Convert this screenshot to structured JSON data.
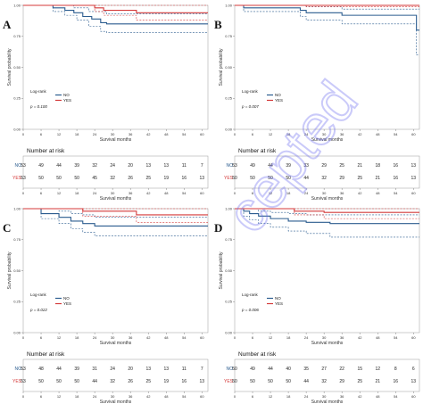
{
  "chart_data": [
    {
      "type": "line",
      "panel": "A",
      "xlabel": "Survival months",
      "ylabel": "Survival probability",
      "x_ticks": [
        0,
        6,
        12,
        18,
        24,
        30,
        36,
        42,
        48,
        54,
        60
      ],
      "y_ticks": [
        "0.00",
        "0.25",
        "0.50",
        "0.75",
        "1.00"
      ],
      "xlim": [
        0,
        62
      ],
      "ylim": [
        0,
        1
      ],
      "legend_title": "Log-rank",
      "legend_entries": [
        "NO",
        "YES"
      ],
      "p_value": "p = 0.100",
      "series": [
        {
          "name": "NO",
          "color": "#2b5c8f",
          "steps": [
            [
              0,
              1
            ],
            [
              10,
              0.98
            ],
            [
              14,
              0.96
            ],
            [
              17,
              0.94
            ],
            [
              20,
              0.91
            ],
            [
              23,
              0.89
            ],
            [
              26,
              0.86
            ],
            [
              28,
              0.85
            ],
            [
              62,
              0.85
            ]
          ],
          "upper": [
            [
              0,
              1
            ],
            [
              10,
              1
            ],
            [
              17,
              0.98
            ],
            [
              22,
              0.95
            ],
            [
              28,
              0.93
            ],
            [
              62,
              0.93
            ]
          ],
          "lower": [
            [
              0,
              1
            ],
            [
              10,
              0.95
            ],
            [
              14,
              0.92
            ],
            [
              18,
              0.88
            ],
            [
              22,
              0.83
            ],
            [
              26,
              0.79
            ],
            [
              28,
              0.78
            ],
            [
              62,
              0.78
            ]
          ]
        },
        {
          "name": "YES",
          "color": "#d43a3a",
          "steps": [
            [
              0,
              1
            ],
            [
              24,
              0.98
            ],
            [
              27,
              0.96
            ],
            [
              38,
              0.94
            ],
            [
              62,
              0.94
            ]
          ],
          "upper": [
            [
              0,
              1
            ],
            [
              62,
              1
            ]
          ],
          "lower": [
            [
              0,
              1
            ],
            [
              24,
              0.95
            ],
            [
              27,
              0.92
            ],
            [
              38,
              0.88
            ],
            [
              62,
              0.88
            ]
          ]
        }
      ],
      "risk_table": {
        "title": "Number at risk",
        "rows": [
          {
            "label": "NO",
            "color": "#2b5c8f",
            "values": [
              "53",
              "49",
              "44",
              "39",
              "32",
              "24",
              "20",
              "13",
              "13",
              "11",
              "7"
            ]
          },
          {
            "label": "YES",
            "color": "#d43a3a",
            "values": [
              "53",
              "50",
              "50",
              "50",
              "45",
              "32",
              "26",
              "25",
              "19",
              "16",
              "13"
            ]
          }
        ],
        "xlabel": "Survival months"
      }
    },
    {
      "type": "line",
      "panel": "B",
      "xlabel": "Survival months",
      "ylabel": "Survival probability",
      "x_ticks": [
        0,
        6,
        12,
        18,
        24,
        30,
        36,
        42,
        48,
        54,
        60
      ],
      "y_ticks": [
        "0.00",
        "0.25",
        "0.50",
        "0.75",
        "1.00"
      ],
      "xlim": [
        0,
        62
      ],
      "ylim": [
        0,
        1
      ],
      "legend_title": "Log-rank",
      "legend_entries": [
        "NO",
        "YES"
      ],
      "p_value": "p = 0.007",
      "series": [
        {
          "name": "NO",
          "color": "#2b5c8f",
          "steps": [
            [
              0,
              1
            ],
            [
              3,
              0.98
            ],
            [
              22,
              0.96
            ],
            [
              24,
              0.94
            ],
            [
              36,
              0.92
            ],
            [
              60,
              0.92
            ],
            [
              61,
              0.8
            ],
            [
              62,
              0.8
            ]
          ],
          "upper": [
            [
              0,
              1
            ],
            [
              22,
              1
            ],
            [
              24,
              0.99
            ],
            [
              36,
              0.97
            ],
            [
              62,
              0.97
            ]
          ],
          "lower": [
            [
              0,
              1
            ],
            [
              3,
              0.95
            ],
            [
              22,
              0.91
            ],
            [
              24,
              0.88
            ],
            [
              36,
              0.85
            ],
            [
              60,
              0.85
            ],
            [
              61,
              0.6
            ],
            [
              62,
              0.6
            ]
          ]
        },
        {
          "name": "YES",
          "color": "#d43a3a",
          "steps": [
            [
              0,
              1
            ],
            [
              62,
              1
            ]
          ],
          "upper": [
            [
              0,
              1
            ],
            [
              62,
              1
            ]
          ],
          "lower": [
            [
              0,
              1
            ],
            [
              24,
              0.99
            ],
            [
              62,
              0.99
            ]
          ]
        }
      ],
      "risk_table": {
        "title": "Number at risk",
        "rows": [
          {
            "label": "NO",
            "color": "#2b5c8f",
            "values": [
              "53",
              "49",
              "44",
              "39",
              "33",
              "29",
              "25",
              "21",
              "18",
              "16",
              "13"
            ]
          },
          {
            "label": "YES",
            "color": "#d43a3a",
            "values": [
              "50",
              "50",
              "50",
              "50",
              "44",
              "32",
              "29",
              "25",
              "21",
              "16",
              "13"
            ]
          }
        ],
        "xlabel": "Survival months"
      }
    },
    {
      "type": "line",
      "panel": "C",
      "xlabel": "Survival months",
      "ylabel": "Survival probability",
      "x_ticks": [
        0,
        6,
        12,
        18,
        24,
        30,
        36,
        42,
        48,
        54,
        60
      ],
      "y_ticks": [
        "0.00",
        "0.25",
        "0.50",
        "0.75",
        "1.00"
      ],
      "xlim": [
        0,
        62
      ],
      "ylim": [
        0,
        1
      ],
      "legend_title": "Log-rank",
      "legend_entries": [
        "NO",
        "YES"
      ],
      "p_value": "p = 0.022",
      "series": [
        {
          "name": "NO",
          "color": "#2b5c8f",
          "steps": [
            [
              0,
              1
            ],
            [
              6,
              0.96
            ],
            [
              12,
              0.93
            ],
            [
              16,
              0.9
            ],
            [
              20,
              0.88
            ],
            [
              24,
              0.86
            ],
            [
              62,
              0.86
            ]
          ],
          "upper": [
            [
              0,
              1
            ],
            [
              6,
              1
            ],
            [
              12,
              0.98
            ],
            [
              16,
              0.96
            ],
            [
              20,
              0.95
            ],
            [
              24,
              0.93
            ],
            [
              62,
              0.93
            ]
          ],
          "lower": [
            [
              0,
              1
            ],
            [
              6,
              0.92
            ],
            [
              12,
              0.88
            ],
            [
              16,
              0.84
            ],
            [
              20,
              0.81
            ],
            [
              24,
              0.78
            ],
            [
              62,
              0.78
            ]
          ]
        },
        {
          "name": "YES",
          "color": "#d43a3a",
          "steps": [
            [
              0,
              1
            ],
            [
              20,
              0.98
            ],
            [
              38,
              0.95
            ],
            [
              62,
              0.95
            ]
          ],
          "upper": [
            [
              0,
              1
            ],
            [
              62,
              1
            ]
          ],
          "lower": [
            [
              0,
              1
            ],
            [
              20,
              0.94
            ],
            [
              38,
              0.89
            ],
            [
              62,
              0.89
            ]
          ]
        }
      ],
      "risk_table": {
        "title": "Number at risk",
        "rows": [
          {
            "label": "NO",
            "color": "#2b5c8f",
            "values": [
              "53",
              "48",
              "44",
              "39",
              "31",
              "24",
              "20",
              "13",
              "13",
              "11",
              "7"
            ]
          },
          {
            "label": "YES",
            "color": "#d43a3a",
            "values": [
              "53",
              "50",
              "50",
              "50",
              "44",
              "32",
              "26",
              "25",
              "19",
              "16",
              "13"
            ]
          }
        ],
        "xlabel": "Survival months"
      }
    },
    {
      "type": "line",
      "panel": "D",
      "xlabel": "Survival months",
      "ylabel": "Survival probability",
      "x_ticks": [
        0,
        6,
        12,
        18,
        24,
        30,
        36,
        42,
        48,
        54,
        60
      ],
      "y_ticks": [
        "0.00",
        "0.25",
        "0.50",
        "0.75",
        "1.00"
      ],
      "xlim": [
        0,
        62
      ],
      "ylim": [
        0,
        1
      ],
      "legend_title": "Log-rank",
      "legend_entries": [
        "NO",
        "YES"
      ],
      "p_value": "p = 0.006",
      "series": [
        {
          "name": "NO",
          "color": "#2b5c8f",
          "steps": [
            [
              0,
              1
            ],
            [
              3,
              0.98
            ],
            [
              5,
              0.96
            ],
            [
              8,
              0.94
            ],
            [
              12,
              0.92
            ],
            [
              18,
              0.9
            ],
            [
              24,
              0.89
            ],
            [
              32,
              0.88
            ],
            [
              62,
              0.88
            ]
          ],
          "upper": [
            [
              0,
              1
            ],
            [
              5,
              1
            ],
            [
              8,
              0.98
            ],
            [
              12,
              0.97
            ],
            [
              18,
              0.96
            ],
            [
              24,
              0.95
            ],
            [
              62,
              0.95
            ]
          ],
          "lower": [
            [
              0,
              1
            ],
            [
              3,
              0.94
            ],
            [
              5,
              0.91
            ],
            [
              8,
              0.88
            ],
            [
              12,
              0.85
            ],
            [
              18,
              0.82
            ],
            [
              24,
              0.8
            ],
            [
              32,
              0.77
            ],
            [
              62,
              0.77
            ]
          ]
        },
        {
          "name": "YES",
          "color": "#d43a3a",
          "steps": [
            [
              0,
              1
            ],
            [
              20,
              0.98
            ],
            [
              30,
              0.97
            ],
            [
              62,
              0.97
            ]
          ],
          "upper": [
            [
              0,
              1
            ],
            [
              62,
              1
            ]
          ],
          "lower": [
            [
              0,
              1
            ],
            [
              20,
              0.95
            ],
            [
              30,
              0.92
            ],
            [
              62,
              0.92
            ]
          ]
        }
      ],
      "risk_table": {
        "title": "Number at risk",
        "rows": [
          {
            "label": "NO",
            "color": "#2b5c8f",
            "values": [
              "50",
              "49",
              "44",
              "40",
              "35",
              "27",
              "22",
              "15",
              "12",
              "8",
              "6"
            ]
          },
          {
            "label": "YES",
            "color": "#d43a3a",
            "values": [
              "50",
              "50",
              "50",
              "50",
              "44",
              "32",
              "29",
              "25",
              "21",
              "16",
              "13"
            ]
          }
        ],
        "xlabel": "Survival months"
      }
    }
  ],
  "watermark": "cepted"
}
